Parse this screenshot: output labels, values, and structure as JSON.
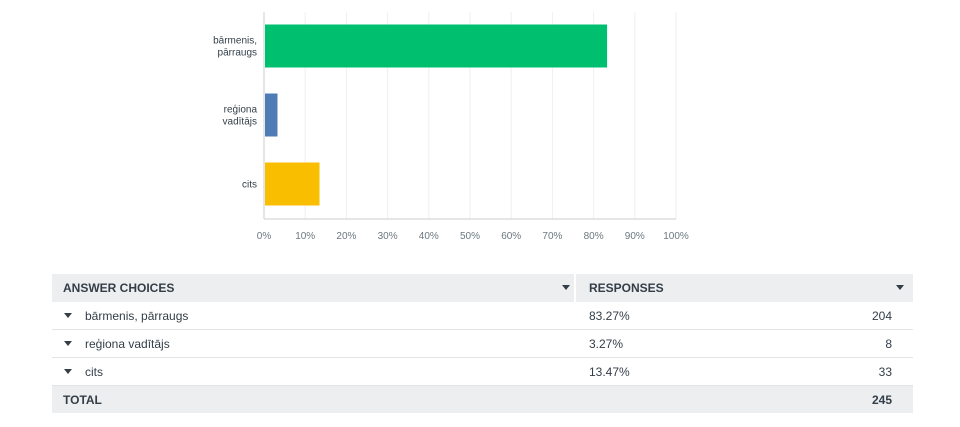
{
  "chart_data": {
    "type": "bar",
    "orientation": "horizontal",
    "categories": [
      "bārmenis, pārraugs",
      "reģiona vadītājs",
      "cits"
    ],
    "category_lines": [
      [
        "bārmenis,",
        "pārraugs"
      ],
      [
        "reģiona",
        "vadītājs"
      ],
      [
        "cits"
      ]
    ],
    "values": [
      83.27,
      3.27,
      13.47
    ],
    "colors": [
      "#00bf6f",
      "#507cb6",
      "#f9be00"
    ],
    "xlim": [
      0,
      100
    ],
    "x_ticks": [
      0,
      10,
      20,
      30,
      40,
      50,
      60,
      70,
      80,
      90,
      100
    ],
    "x_tick_labels": [
      "0%",
      "10%",
      "20%",
      "30%",
      "40%",
      "50%",
      "60%",
      "70%",
      "80%",
      "90%",
      "100%"
    ],
    "grid": true
  },
  "table": {
    "header": {
      "choices": "ANSWER CHOICES",
      "responses": "RESPONSES"
    },
    "rows": [
      {
        "choice": "bārmenis, pārraugs",
        "percent": "83.27%",
        "count": "204"
      },
      {
        "choice": "reģiona vadītājs",
        "percent": "3.27%",
        "count": "8"
      },
      {
        "choice": "cits",
        "percent": "13.47%",
        "count": "33"
      }
    ],
    "total": {
      "label": "TOTAL",
      "count": "245"
    }
  }
}
